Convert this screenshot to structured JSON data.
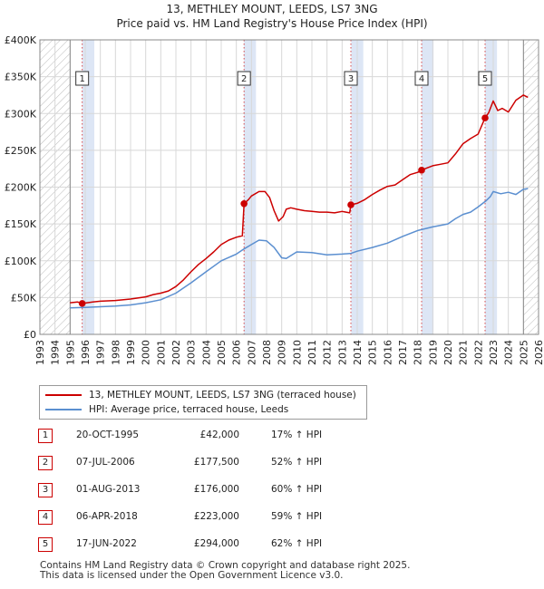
{
  "title_line1": "13, METHLEY MOUNT, LEEDS, LS7 3NG",
  "title_line2": "Price paid vs. HM Land Registry's House Price Index (HPI)",
  "legend": {
    "property_label": "13, METHLEY MOUNT, LEEDS, LS7 3NG (terraced house)",
    "hpi_label": "HPI: Average price, terraced house, Leeds"
  },
  "sales": [
    {
      "num": "1",
      "date": "20-OCT-1995",
      "price": "£42,000",
      "hpi": "17% ↑ HPI"
    },
    {
      "num": "2",
      "date": "07-JUL-2006",
      "price": "£177,500",
      "hpi": "52% ↑ HPI"
    },
    {
      "num": "3",
      "date": "01-AUG-2013",
      "price": "£176,000",
      "hpi": "60% ↑ HPI"
    },
    {
      "num": "4",
      "date": "06-APR-2018",
      "price": "£223,000",
      "hpi": "59% ↑ HPI"
    },
    {
      "num": "5",
      "date": "17-JUN-2022",
      "price": "£294,000",
      "hpi": "62% ↑ HPI"
    }
  ],
  "footer_line1": "Contains HM Land Registry data © Crown copyright and database right 2025.",
  "footer_line2": "This data is licensed under the Open Government Licence v3.0.",
  "colors": {
    "property": "#cc0000",
    "hpi": "#5b8fd0",
    "shade": "#dde6f5",
    "hatch": "#bbbbbb",
    "grid": "#d8d8d8"
  },
  "chart_data": {
    "type": "line",
    "title": "Price paid vs. HM Land Registry's House Price Index (HPI)",
    "xlim": [
      1993,
      2026
    ],
    "ylim": [
      0,
      400000
    ],
    "y_ticks": [
      0,
      50000,
      100000,
      150000,
      200000,
      250000,
      300000,
      350000,
      400000
    ],
    "y_tick_labels": [
      "£0",
      "£50K",
      "£100K",
      "£150K",
      "£200K",
      "£250K",
      "£300K",
      "£350K",
      "£400K"
    ],
    "x_ticks": [
      1993,
      1994,
      1995,
      1996,
      1997,
      1998,
      1999,
      2000,
      2001,
      2002,
      2003,
      2004,
      2005,
      2006,
      2007,
      2008,
      2009,
      2010,
      2011,
      2012,
      2013,
      2014,
      2015,
      2016,
      2017,
      2018,
      2019,
      2020,
      2021,
      2022,
      2023,
      2024,
      2025,
      2026
    ],
    "hatch_before": 1995.0,
    "hatch_after": 2025.0,
    "shaded_ranges": [
      [
        1995.8,
        1996.6
      ],
      [
        2006.5,
        2007.3
      ],
      [
        2013.6,
        2014.4
      ],
      [
        2018.26,
        2019.05
      ],
      [
        2022.46,
        2023.25
      ]
    ],
    "sale_markers": [
      {
        "label": "1",
        "x": 1995.8,
        "y": 42000
      },
      {
        "label": "2",
        "x": 2006.51,
        "y": 177500
      },
      {
        "label": "3",
        "x": 2013.58,
        "y": 176000
      },
      {
        "label": "4",
        "x": 2018.26,
        "y": 223000
      },
      {
        "label": "5",
        "x": 2022.46,
        "y": 294000
      }
    ],
    "series": [
      {
        "name": "13, METHLEY MOUNT, LEEDS, LS7 3NG (terraced house)",
        "x": [
          1995.0,
          1995.5,
          1995.8,
          1996.5,
          1997.0,
          1998.0,
          1999.0,
          2000.0,
          2000.5,
          2001.0,
          2001.5,
          2002.0,
          2002.5,
          2003.0,
          2003.5,
          2004.0,
          2004.5,
          2005.0,
          2005.5,
          2006.0,
          2006.4,
          2006.51,
          2006.8,
          2007.0,
          2007.5,
          2007.9,
          2008.2,
          2008.5,
          2008.8,
          2009.1,
          2009.3,
          2009.6,
          2010.0,
          2010.5,
          2011.0,
          2011.5,
          2012.0,
          2012.5,
          2013.0,
          2013.5,
          2013.58,
          2014.0,
          2014.5,
          2015.0,
          2015.5,
          2016.0,
          2016.5,
          2017.0,
          2017.5,
          2018.0,
          2018.26,
          2018.6,
          2019.0,
          2019.5,
          2020.0,
          2020.5,
          2021.0,
          2021.5,
          2022.0,
          2022.46,
          2022.7,
          2023.0,
          2023.3,
          2023.6,
          2024.0,
          2024.5,
          2025.0,
          2025.3
        ],
        "values": [
          43000,
          44000,
          42000,
          44000,
          45000,
          46000,
          48000,
          51000,
          54000,
          56000,
          59000,
          65000,
          74000,
          85000,
          95000,
          103000,
          112000,
          122000,
          128000,
          132000,
          134000,
          177500,
          183000,
          188000,
          194000,
          194000,
          186000,
          168000,
          154000,
          160000,
          170000,
          172000,
          170000,
          168000,
          167000,
          166000,
          166000,
          165000,
          167000,
          165000,
          176000,
          178000,
          183000,
          190000,
          196000,
          201000,
          203000,
          210000,
          217000,
          220000,
          223000,
          226000,
          229000,
          231000,
          233000,
          245000,
          259000,
          266000,
          272000,
          294000,
          301000,
          317000,
          304000,
          307000,
          302000,
          318000,
          325000,
          322000
        ]
      },
      {
        "name": "HPI: Average price, terraced house, Leeds",
        "x": [
          1995.0,
          1996.0,
          1997.0,
          1998.0,
          1999.0,
          2000.0,
          2001.0,
          2002.0,
          2003.0,
          2004.0,
          2005.0,
          2006.0,
          2006.5,
          2007.0,
          2007.5,
          2008.0,
          2008.5,
          2009.0,
          2009.3,
          2010.0,
          2011.0,
          2012.0,
          2013.0,
          2013.6,
          2014.0,
          2015.0,
          2016.0,
          2017.0,
          2018.0,
          2019.0,
          2020.0,
          2020.5,
          2021.0,
          2021.5,
          2022.0,
          2022.5,
          2022.8,
          2023.0,
          2023.5,
          2024.0,
          2024.5,
          2025.0,
          2025.3
        ],
        "values": [
          36000,
          36500,
          37500,
          38500,
          40000,
          43000,
          47000,
          56000,
          70000,
          85000,
          100000,
          109000,
          116000,
          122000,
          128000,
          127000,
          118000,
          104000,
          103000,
          112000,
          111000,
          108000,
          109000,
          110000,
          113000,
          118000,
          124000,
          133000,
          141000,
          146000,
          150000,
          157000,
          163000,
          166000,
          173000,
          181000,
          187000,
          194000,
          191000,
          193000,
          190000,
          197000,
          198000
        ]
      }
    ],
    "xlabel": "",
    "ylabel": ""
  }
}
